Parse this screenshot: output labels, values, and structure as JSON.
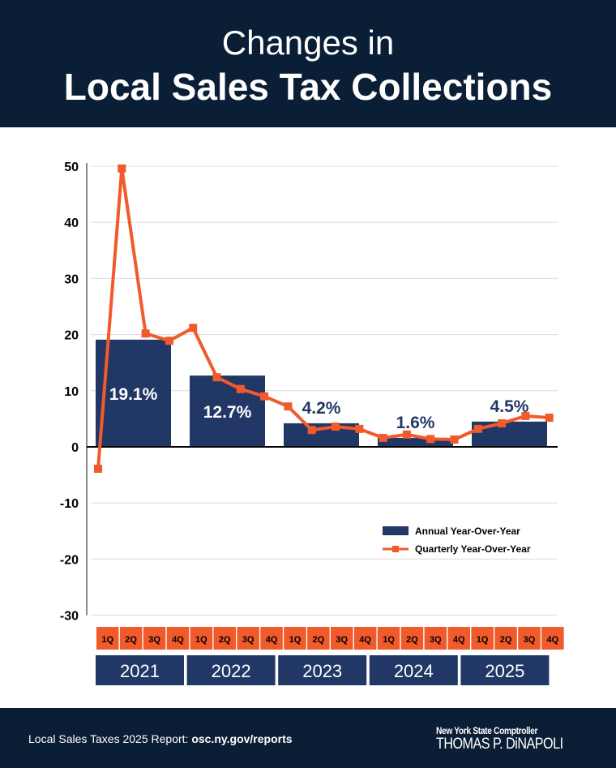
{
  "header": {
    "title_line1": "Changes in",
    "title_line2": "Local Sales Tax Collections"
  },
  "chart_data": {
    "type": "bar+line",
    "title": "Changes in Local Sales Tax Collections",
    "ylim": [
      -30,
      50
    ],
    "yticks": [
      50,
      40,
      30,
      20,
      10,
      0,
      -10,
      -20,
      -30
    ],
    "grid": true,
    "legend_position": "right-middle",
    "years": [
      "2021",
      "2022",
      "2023",
      "2024",
      "2025"
    ],
    "quarters": [
      "1Q",
      "2Q",
      "3Q",
      "4Q"
    ],
    "series": [
      {
        "name": "Annual Year-Over-Year",
        "type": "bar",
        "color": "#213766",
        "values": [
          19.1,
          12.7,
          4.2,
          1.6,
          4.5
        ],
        "labels": [
          "19.1%",
          "12.7%",
          "4.2%",
          "1.6%",
          "4.5%"
        ]
      },
      {
        "name": "Quarterly Year-Over-Year",
        "type": "line",
        "color": "#f15a2b",
        "values": [
          -3.9,
          49.6,
          20.2,
          18.9,
          21.2,
          12.4,
          10.3,
          9.0,
          7.2,
          3.0,
          3.6,
          3.2,
          1.6,
          2.2,
          1.4,
          1.3,
          3.2,
          4.2,
          5.5,
          5.2
        ]
      }
    ]
  },
  "footer": {
    "source_prefix": "Local Sales Taxes 2025 Report: ",
    "source_link": "osc.ny.gov/reports",
    "logo_line1": "New York State Comptroller",
    "logo_line2": "THOMAS P. DiNAPOLI"
  }
}
